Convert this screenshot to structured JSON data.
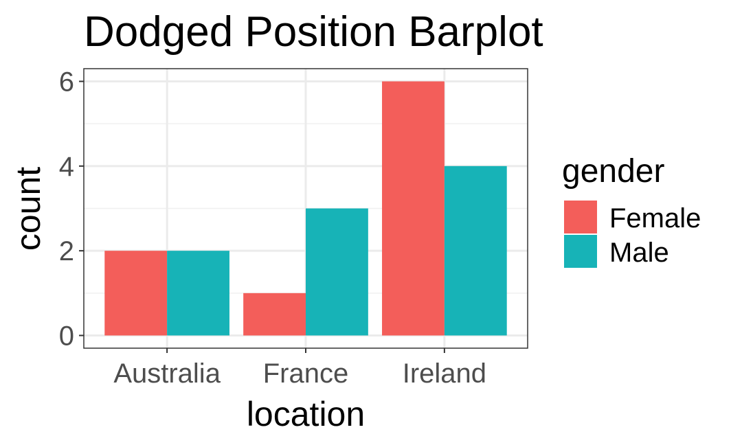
{
  "chart_data": {
    "type": "bar",
    "title": "Dodged Position Barplot",
    "xlabel": "location",
    "ylabel": "count",
    "categories": [
      "Australia",
      "France",
      "Ireland"
    ],
    "series": [
      {
        "name": "Female",
        "values": [
          2,
          1,
          6
        ],
        "color": "#F35E5A"
      },
      {
        "name": "Male",
        "values": [
          2,
          3,
          4
        ],
        "color": "#17B3B7"
      }
    ],
    "ylim": [
      -0.3,
      6.3
    ],
    "yticks": [
      0,
      2,
      4,
      6
    ],
    "grid": true,
    "legend": {
      "title": "gender",
      "position": "right"
    }
  }
}
